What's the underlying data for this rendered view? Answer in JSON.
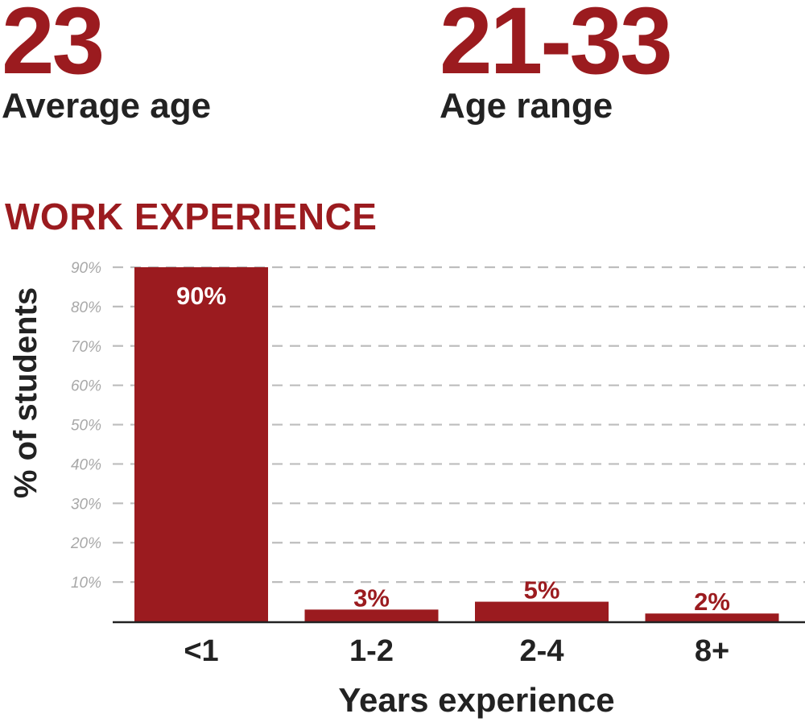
{
  "colors": {
    "accent": "#9b1b1f",
    "text_dark": "#222222",
    "tick_text": "#a8a8a8",
    "grid": "#bdbdbd",
    "bar_label_inside": "#ffffff"
  },
  "stats": [
    {
      "value": "23",
      "label": "Average age"
    },
    {
      "value": "21-33",
      "label": "Age range"
    }
  ],
  "section_title": "WORK EXPERIENCE",
  "chart_data": {
    "type": "bar",
    "categories": [
      "<1",
      "1-2",
      "2-4",
      "8+"
    ],
    "values": [
      90,
      3,
      5,
      2
    ],
    "data_labels": [
      "90%",
      "3%",
      "5%",
      "2%"
    ],
    "xlabel": "Years experience",
    "ylabel": "% of students",
    "ylim": [
      0,
      90
    ],
    "yticks": [
      10,
      20,
      30,
      40,
      50,
      60,
      70,
      80,
      90
    ],
    "ytick_labels": [
      "10%",
      "20%",
      "30%",
      "40%",
      "50%",
      "60%",
      "70%",
      "80%",
      "90%"
    ],
    "grid": true,
    "grid_style": "dashed"
  }
}
